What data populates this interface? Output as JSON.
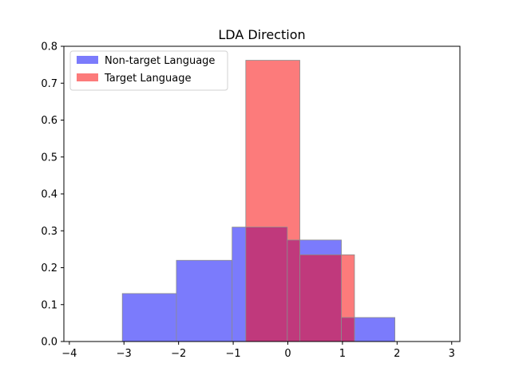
{
  "chart_data": {
    "type": "bar",
    "title": "LDA Direction",
    "xlabel": "",
    "ylabel": "",
    "xlim": [
      -4.1,
      3.15
    ],
    "ylim": [
      0,
      0.8
    ],
    "xticks": [
      -4,
      -3,
      -2,
      -1,
      0,
      1,
      2,
      3
    ],
    "yticks": [
      0.0,
      0.1,
      0.2,
      0.3,
      0.4,
      0.5,
      0.6,
      0.7,
      0.8
    ],
    "xtick_labels": [
      "−4",
      "−3",
      "−2",
      "−1",
      "0",
      "1",
      "2",
      "3"
    ],
    "ytick_labels": [
      "0.0",
      "0.1",
      "0.2",
      "0.3",
      "0.4",
      "0.5",
      "0.6",
      "0.7",
      "0.8"
    ],
    "grid": false,
    "legend_position": "top-left",
    "series": [
      {
        "name": "Non-target Language",
        "color": "#7b7bfc",
        "bins": [
          {
            "x0": -3.03,
            "x1": -2.04,
            "value": 0.13
          },
          {
            "x0": -2.04,
            "x1": -1.02,
            "value": 0.22
          },
          {
            "x0": -1.02,
            "x1": -0.01,
            "value": 0.31
          },
          {
            "x0": -0.01,
            "x1": 0.98,
            "value": 0.275
          },
          {
            "x0": 0.98,
            "x1": 1.96,
            "value": 0.065
          }
        ]
      },
      {
        "name": "Target Language",
        "color": "#fc7b7b",
        "bins": [
          {
            "x0": -0.77,
            "x1": 0.22,
            "value": 0.762
          },
          {
            "x0": 0.22,
            "x1": 1.22,
            "value": 0.235
          }
        ]
      }
    ]
  }
}
